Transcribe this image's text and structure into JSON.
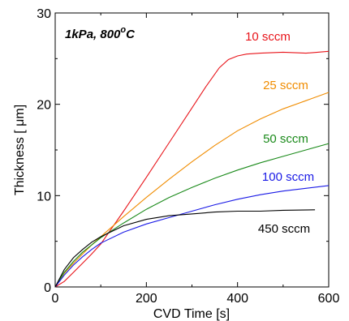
{
  "chart_data": {
    "type": "line",
    "title": "1kPa, 800",
    "title_superscript": "o",
    "title_suffix": "C",
    "xlabel": "CVD Time [s]",
    "ylabel": "Thickness [ μm]",
    "xlim": [
      0,
      600
    ],
    "ylim": [
      0,
      30
    ],
    "x_ticks": [
      0,
      200,
      400,
      600
    ],
    "y_ticks": [
      0,
      10,
      20,
      30
    ],
    "grid": false,
    "series": [
      {
        "name": "10 sccm",
        "color": "#e8141a",
        "label_position": "above curve near top-right",
        "x": [
          0,
          20,
          40,
          60,
          80,
          100,
          150,
          200,
          250,
          300,
          330,
          360,
          380,
          400,
          420,
          450,
          500,
          550,
          600
        ],
        "y": [
          0,
          0.6,
          1.6,
          2.6,
          3.6,
          4.7,
          8.3,
          12.0,
          15.8,
          19.6,
          21.9,
          24.0,
          24.9,
          25.3,
          25.5,
          25.6,
          25.7,
          25.6,
          25.8
        ]
      },
      {
        "name": "25 sccm",
        "color": "#f08c00",
        "x": [
          0,
          20,
          40,
          60,
          80,
          100,
          150,
          200,
          250,
          300,
          350,
          400,
          450,
          500,
          550,
          600
        ],
        "y": [
          0,
          1.5,
          2.6,
          3.6,
          4.6,
          5.5,
          7.7,
          9.8,
          11.8,
          13.7,
          15.5,
          17.1,
          18.4,
          19.5,
          20.4,
          21.3
        ]
      },
      {
        "name": "50 sccm",
        "color": "#1a8a1a",
        "x": [
          0,
          20,
          40,
          60,
          80,
          100,
          150,
          200,
          250,
          300,
          350,
          400,
          450,
          500,
          550,
          600
        ],
        "y": [
          0,
          1.6,
          2.8,
          3.8,
          4.6,
          5.4,
          7.0,
          8.5,
          9.8,
          10.9,
          11.9,
          12.8,
          13.6,
          14.3,
          15.0,
          15.7
        ]
      },
      {
        "name": "100 sccm",
        "color": "#1a1ae6",
        "x": [
          0,
          20,
          40,
          60,
          80,
          100,
          150,
          200,
          250,
          300,
          350,
          400,
          450,
          500,
          550,
          600
        ],
        "y": [
          0,
          1.3,
          2.4,
          3.3,
          4.1,
          4.8,
          6.0,
          6.9,
          7.6,
          8.3,
          9.0,
          9.6,
          10.1,
          10.5,
          10.8,
          11.1
        ]
      },
      {
        "name": "450 sccm",
        "color": "#000000",
        "x": [
          0,
          20,
          40,
          60,
          80,
          100,
          150,
          200,
          250,
          300,
          350,
          400,
          450,
          500,
          570
        ],
        "y": [
          0,
          1.9,
          3.2,
          4.1,
          4.9,
          5.5,
          6.7,
          7.4,
          7.8,
          8.0,
          8.2,
          8.3,
          8.3,
          8.4,
          8.45
        ]
      }
    ]
  }
}
